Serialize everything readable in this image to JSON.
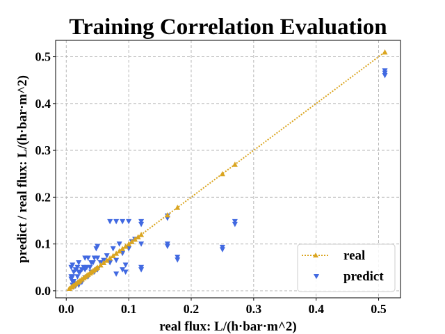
{
  "chart_data": {
    "type": "scatter",
    "title": "Training Correlation Evaluation",
    "xlabel": "real flux: L/(h·bar·m^2)",
    "ylabel": "predict / real flux: L/(h·bar·m^2)",
    "xlim": [
      -0.017,
      0.535
    ],
    "ylim": [
      -0.015,
      0.535
    ],
    "xticks": [
      0.0,
      0.1,
      0.2,
      0.3,
      0.4,
      0.5
    ],
    "yticks": [
      0.0,
      0.1,
      0.2,
      0.3,
      0.4,
      0.5
    ],
    "xtick_labels": [
      "0.0",
      "0.1",
      "0.2",
      "0.3",
      "0.4",
      "0.5"
    ],
    "ytick_labels": [
      "0.0",
      "0.1",
      "0.2",
      "0.3",
      "0.4",
      "0.5"
    ],
    "grid": true,
    "legend_position": "lower-right",
    "series": [
      {
        "name": "real",
        "kind": "line",
        "marker": "triangle-up",
        "linestyle": "dotted",
        "color": "#DAA520",
        "x": [
          0.005,
          0.008,
          0.01,
          0.012,
          0.015,
          0.018,
          0.02,
          0.022,
          0.025,
          0.028,
          0.03,
          0.033,
          0.035,
          0.038,
          0.04,
          0.043,
          0.045,
          0.048,
          0.05,
          0.055,
          0.06,
          0.065,
          0.07,
          0.075,
          0.08,
          0.085,
          0.09,
          0.095,
          0.1,
          0.105,
          0.11,
          0.115,
          0.12,
          0.162,
          0.178,
          0.25,
          0.27,
          0.51
        ],
        "y": [
          0.005,
          0.008,
          0.01,
          0.012,
          0.015,
          0.018,
          0.02,
          0.022,
          0.025,
          0.028,
          0.03,
          0.033,
          0.035,
          0.038,
          0.04,
          0.043,
          0.045,
          0.048,
          0.05,
          0.055,
          0.06,
          0.065,
          0.07,
          0.075,
          0.08,
          0.085,
          0.09,
          0.095,
          0.1,
          0.105,
          0.11,
          0.115,
          0.12,
          0.162,
          0.178,
          0.25,
          0.27,
          0.51
        ]
      },
      {
        "name": "predict",
        "kind": "scatter",
        "marker": "triangle-down",
        "color": "#4169E1",
        "x": [
          0.51,
          0.51,
          0.51,
          0.27,
          0.27,
          0.25,
          0.25,
          0.178,
          0.178,
          0.162,
          0.162,
          0.162,
          0.162,
          0.12,
          0.12,
          0.12,
          0.12,
          0.12,
          0.11,
          0.105,
          0.1,
          0.1,
          0.095,
          0.095,
          0.09,
          0.09,
          0.09,
          0.085,
          0.08,
          0.08,
          0.08,
          0.075,
          0.07,
          0.07,
          0.065,
          0.06,
          0.055,
          0.05,
          0.05,
          0.05,
          0.048,
          0.045,
          0.045,
          0.043,
          0.04,
          0.04,
          0.038,
          0.035,
          0.035,
          0.033,
          0.03,
          0.03,
          0.03,
          0.028,
          0.025,
          0.025,
          0.022,
          0.02,
          0.02,
          0.02,
          0.018,
          0.018,
          0.015,
          0.015,
          0.012,
          0.012,
          0.01,
          0.01,
          0.01,
          0.008,
          0.008,
          0.008,
          0.01,
          0.012,
          0.015,
          0.02,
          0.025
        ],
        "y": [
          0.47,
          0.465,
          0.46,
          0.148,
          0.142,
          0.093,
          0.088,
          0.072,
          0.066,
          0.16,
          0.155,
          0.1,
          0.095,
          0.148,
          0.142,
          0.05,
          0.045,
          0.1,
          0.11,
          0.105,
          0.148,
          0.09,
          0.055,
          0.04,
          0.148,
          0.045,
          0.08,
          0.1,
          0.148,
          0.065,
          0.036,
          0.09,
          0.148,
          0.06,
          0.075,
          0.065,
          0.06,
          0.095,
          0.045,
          0.07,
          0.09,
          0.07,
          0.04,
          0.06,
          0.06,
          0.04,
          0.05,
          0.07,
          0.03,
          0.05,
          0.07,
          0.045,
          0.028,
          0.05,
          0.045,
          0.02,
          0.04,
          0.06,
          0.04,
          0.012,
          0.05,
          0.03,
          0.045,
          0.015,
          0.04,
          0.02,
          0.055,
          0.03,
          0.02,
          0.05,
          0.03,
          0.025,
          0.012,
          0.008,
          0.01,
          0.015,
          0.018
        ]
      }
    ]
  }
}
